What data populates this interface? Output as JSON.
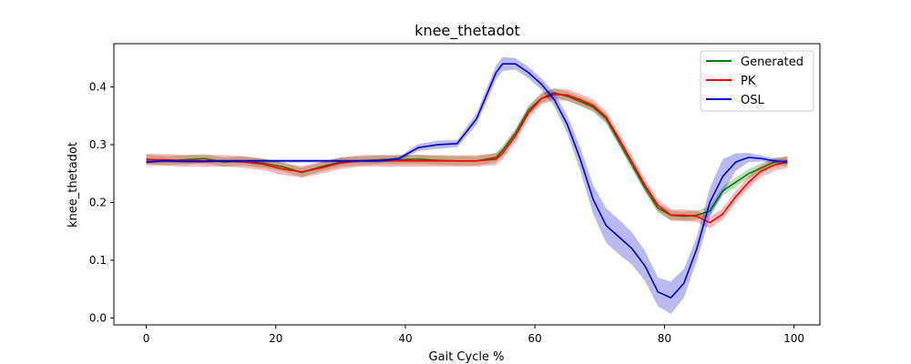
{
  "chart_data": {
    "type": "line",
    "title": "knee_thetadot",
    "xlabel": "Gait Cycle %",
    "ylabel": "knee_thetadot",
    "xlim": [
      -5,
      104
    ],
    "ylim": [
      -0.012,
      0.475
    ],
    "xticks": [
      0,
      20,
      40,
      60,
      80,
      100
    ],
    "yticks": [
      0.0,
      0.1,
      0.2,
      0.3,
      0.4
    ],
    "ytick_labels": [
      "0.0",
      "0.1",
      "0.2",
      "0.3",
      "0.4"
    ],
    "grid": false,
    "legend_position": "top-right",
    "x_range": [
      0,
      99
    ],
    "series": [
      {
        "name": "Generated",
        "color": "#008000",
        "band_width": 0.008,
        "x": [
          0,
          3,
          6,
          9,
          12,
          15,
          18,
          21,
          24,
          27,
          30,
          33,
          36,
          39,
          42,
          45,
          48,
          51,
          54,
          55,
          57,
          59,
          61,
          63,
          65,
          67,
          69,
          71,
          73,
          75,
          77,
          79,
          81,
          83,
          85,
          87,
          89,
          91,
          93,
          95,
          97,
          99
        ],
        "values": [
          0.275,
          0.272,
          0.274,
          0.276,
          0.27,
          0.272,
          0.268,
          0.262,
          0.252,
          0.262,
          0.27,
          0.272,
          0.274,
          0.274,
          0.275,
          0.273,
          0.272,
          0.272,
          0.278,
          0.29,
          0.32,
          0.36,
          0.38,
          0.39,
          0.384,
          0.375,
          0.365,
          0.345,
          0.305,
          0.265,
          0.225,
          0.19,
          0.178,
          0.176,
          0.178,
          0.185,
          0.22,
          0.235,
          0.25,
          0.26,
          0.27,
          0.272
        ]
      },
      {
        "name": "PK",
        "color": "#ff0000",
        "band_width": 0.01,
        "x": [
          0,
          3,
          6,
          9,
          12,
          15,
          18,
          21,
          24,
          27,
          30,
          33,
          36,
          39,
          42,
          45,
          48,
          51,
          54,
          55,
          57,
          59,
          61,
          63,
          65,
          67,
          69,
          71,
          73,
          75,
          77,
          79,
          81,
          83,
          85,
          87,
          89,
          91,
          93,
          95,
          97,
          99
        ],
        "values": [
          0.274,
          0.274,
          0.272,
          0.272,
          0.272,
          0.27,
          0.266,
          0.258,
          0.253,
          0.26,
          0.268,
          0.272,
          0.272,
          0.272,
          0.272,
          0.272,
          0.272,
          0.272,
          0.275,
          0.285,
          0.315,
          0.355,
          0.38,
          0.387,
          0.386,
          0.378,
          0.368,
          0.348,
          0.31,
          0.27,
          0.23,
          0.195,
          0.178,
          0.178,
          0.176,
          0.165,
          0.18,
          0.21,
          0.235,
          0.255,
          0.265,
          0.27
        ]
      },
      {
        "name": "OSL",
        "color": "#0000cc",
        "band_width_profile": [
          0.003,
          0.003,
          0.003,
          0.003,
          0.003,
          0.003,
          0.003,
          0.003,
          0.003,
          0.003,
          0.003,
          0.003,
          0.003,
          0.003,
          0.006,
          0.007,
          0.006,
          0.01,
          0.012,
          0.012,
          0.01,
          0.01,
          0.01,
          0.012,
          0.015,
          0.02,
          0.025,
          0.03,
          0.03,
          0.028,
          0.026,
          0.025,
          0.028,
          0.025,
          0.02,
          0.025,
          0.03,
          0.015,
          0.008,
          0.005,
          0.004,
          0.004
        ],
        "x": [
          0,
          3,
          6,
          9,
          12,
          15,
          18,
          21,
          24,
          27,
          30,
          33,
          36,
          39,
          42,
          45,
          48,
          51,
          54,
          55,
          57,
          59,
          61,
          63,
          65,
          67,
          69,
          71,
          73,
          75,
          77,
          79,
          81,
          83,
          85,
          87,
          89,
          91,
          93,
          95,
          97,
          99
        ],
        "values": [
          0.27,
          0.272,
          0.271,
          0.271,
          0.272,
          0.272,
          0.272,
          0.272,
          0.272,
          0.272,
          0.272,
          0.272,
          0.272,
          0.276,
          0.295,
          0.3,
          0.302,
          0.345,
          0.425,
          0.44,
          0.44,
          0.425,
          0.405,
          0.378,
          0.335,
          0.275,
          0.205,
          0.16,
          0.14,
          0.12,
          0.09,
          0.045,
          0.035,
          0.06,
          0.12,
          0.2,
          0.245,
          0.27,
          0.278,
          0.276,
          0.272,
          0.27
        ]
      }
    ]
  }
}
